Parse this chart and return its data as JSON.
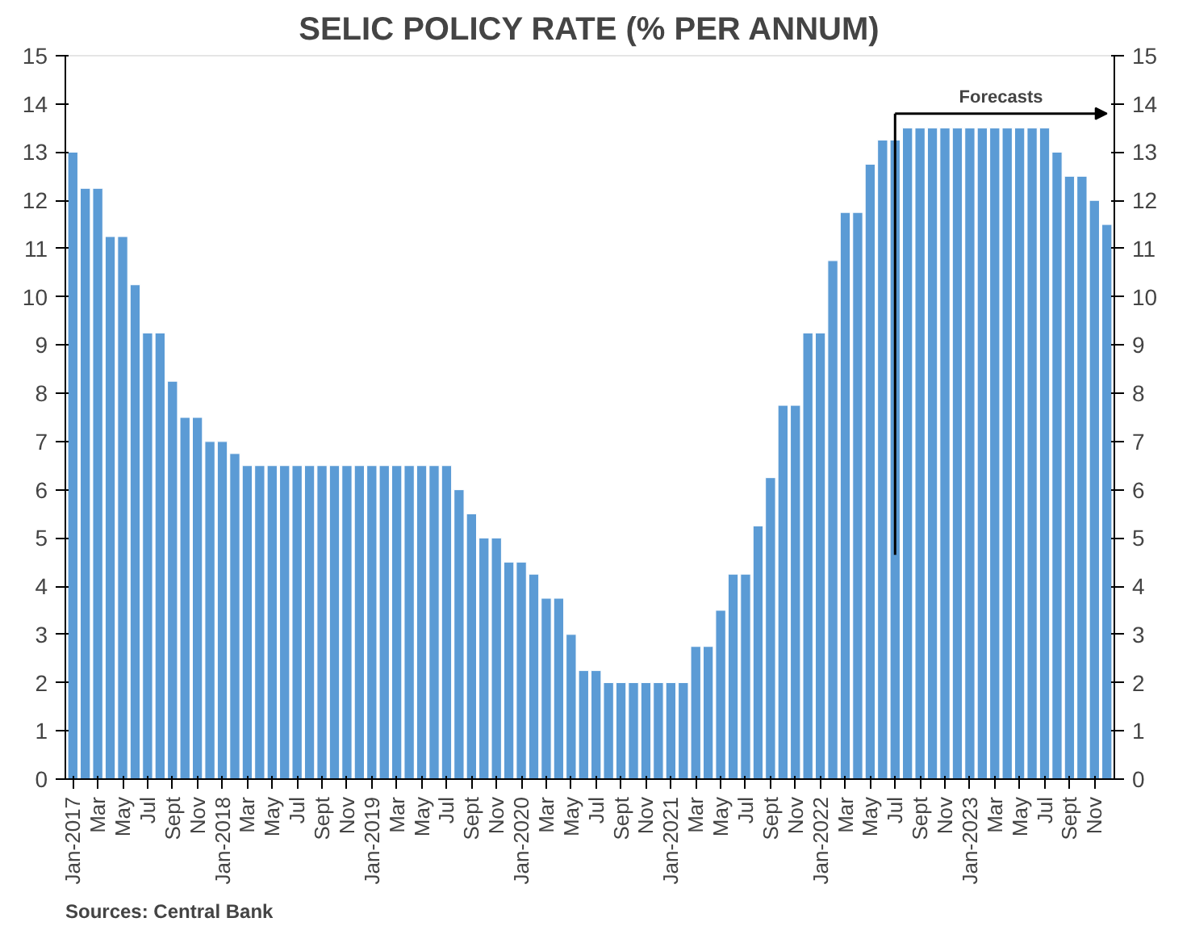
{
  "chart_data": {
    "type": "bar",
    "title": "SELIC POLICY RATE (% PER ANNUM)",
    "categories": [
      "Jan-2017",
      null,
      "Mar",
      null,
      "May",
      null,
      "Jul",
      null,
      "Sept",
      null,
      "Nov",
      null,
      "Jan-2018",
      null,
      "Mar",
      null,
      "May",
      null,
      "Jul",
      null,
      "Sept",
      null,
      "Nov",
      null,
      "Jan-2019",
      null,
      "Mar",
      null,
      "May",
      null,
      "Jul",
      null,
      "Sept",
      null,
      "Nov",
      null,
      "Jan-2020",
      null,
      "Mar",
      null,
      "May",
      null,
      "Jul",
      null,
      "Sept",
      null,
      "Nov",
      null,
      "Jan-2021",
      null,
      "Mar",
      null,
      "May",
      null,
      "Jul",
      null,
      "Sept",
      null,
      "Nov",
      null,
      "Jan-2022",
      null,
      "Mar",
      null,
      "May",
      null,
      "Jul",
      null,
      "Sept",
      null,
      "Nov",
      null,
      "Jan-2023",
      null,
      "Mar",
      null,
      "May",
      null,
      "Jul",
      null,
      "Sept",
      null,
      "Nov",
      null
    ],
    "values": [
      13.0,
      12.25,
      12.25,
      11.25,
      11.25,
      10.25,
      9.25,
      9.25,
      8.25,
      7.5,
      7.5,
      7.0,
      7.0,
      6.75,
      6.5,
      6.5,
      6.5,
      6.5,
      6.5,
      6.5,
      6.5,
      6.5,
      6.5,
      6.5,
      6.5,
      6.5,
      6.5,
      6.5,
      6.5,
      6.5,
      6.5,
      6.0,
      5.5,
      5.0,
      5.0,
      4.5,
      4.5,
      4.25,
      3.75,
      3.75,
      3.0,
      2.25,
      2.25,
      2.0,
      2.0,
      2.0,
      2.0,
      2.0,
      2.0,
      2.0,
      2.75,
      2.75,
      3.5,
      4.25,
      4.25,
      5.25,
      6.25,
      7.75,
      7.75,
      9.25,
      9.25,
      10.75,
      11.75,
      11.75,
      12.75,
      13.25,
      13.25,
      13.5,
      13.5,
      13.5,
      13.5,
      13.5,
      13.5,
      13.5,
      13.5,
      13.5,
      13.5,
      13.5,
      13.5,
      13.0,
      12.5,
      12.5,
      12.0,
      11.5
    ],
    "color": "#5b9bd5",
    "ylim": [
      0,
      15
    ],
    "yticks": [
      0,
      1,
      2,
      3,
      4,
      5,
      6,
      7,
      8,
      9,
      10,
      11,
      12,
      13,
      14,
      15
    ],
    "y2lim": [
      0,
      15
    ],
    "y2ticks": [
      0,
      1,
      2,
      3,
      4,
      5,
      6,
      7,
      8,
      9,
      10,
      11,
      12,
      13,
      14,
      15
    ],
    "annotations": [
      "Forecasts",
      "Sources: Central Bank"
    ],
    "grid": false
  }
}
